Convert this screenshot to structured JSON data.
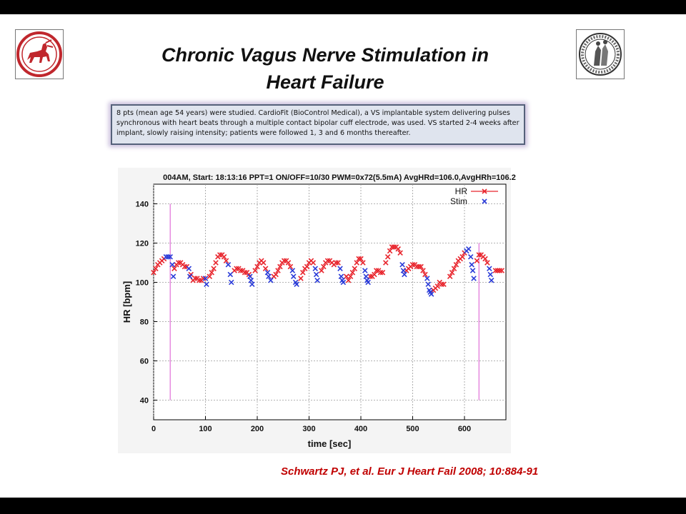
{
  "slide": {
    "title_line1": "Chronic Vagus Nerve Stimulation  in",
    "title_line2": "Heart Failure",
    "info_text": "8 pts (mean age 54 years) were studied. CardioFit (BioControl Medical), a VS implantable system delivering pulses synchronous with heart beats through a multiple contact bipolar cuff electrode, was used. VS started 2-4 weeks after implant, slowly raising intensity; patients were followed 1, 3 and 6 months thereafter.",
    "citation": "Schwartz PJ, et al. Eur J Heart Fail 2008; 10:884-91",
    "logo_left": "centaur-emblem",
    "logo_right": "university-seal"
  },
  "chart_data": {
    "type": "scatter",
    "title": "004AM, Start: 18:13:16 PPT=1 ON/OFF=10/30 PWM=0x72(5.5mA) AvgHRd=106.0,AvgHRh=106.2",
    "xlabel": "time [sec]",
    "ylabel": "HR [bpm]",
    "xlim": [
      0,
      680
    ],
    "ylim": [
      30,
      150
    ],
    "xticks": [
      0,
      100,
      200,
      300,
      400,
      500,
      600
    ],
    "yticks": [
      40,
      60,
      80,
      100,
      120,
      140
    ],
    "grid": true,
    "legend_position": "top-right",
    "colors": {
      "HR": "#e8242c",
      "Stim": "#2a3bd8",
      "markers": "#e070d8"
    },
    "marker_lines": [
      {
        "x": 32,
        "y0": 40,
        "y1": 140
      },
      {
        "x": 628,
        "y0": 40,
        "y1": 120
      }
    ],
    "series": [
      {
        "name": "HR",
        "points": [
          [
            0,
            105
          ],
          [
            4,
            107
          ],
          [
            8,
            109
          ],
          [
            12,
            110
          ],
          [
            16,
            111
          ],
          [
            20,
            112
          ],
          [
            40,
            107
          ],
          [
            44,
            109
          ],
          [
            48,
            110
          ],
          [
            52,
            110
          ],
          [
            56,
            109
          ],
          [
            60,
            108
          ],
          [
            64,
            108
          ],
          [
            72,
            104
          ],
          [
            76,
            101
          ],
          [
            80,
            102
          ],
          [
            84,
            102
          ],
          [
            88,
            101
          ],
          [
            92,
            101
          ],
          [
            96,
            102
          ],
          [
            108,
            103
          ],
          [
            112,
            105
          ],
          [
            116,
            107
          ],
          [
            120,
            110
          ],
          [
            124,
            113
          ],
          [
            128,
            114
          ],
          [
            132,
            114
          ],
          [
            136,
            113
          ],
          [
            140,
            111
          ],
          [
            156,
            106
          ],
          [
            160,
            107
          ],
          [
            164,
            107
          ],
          [
            168,
            106
          ],
          [
            172,
            106
          ],
          [
            176,
            105
          ],
          [
            180,
            105
          ],
          [
            184,
            104
          ],
          [
            196,
            106
          ],
          [
            200,
            108
          ],
          [
            204,
            110
          ],
          [
            208,
            111
          ],
          [
            212,
            110
          ],
          [
            216,
            107
          ],
          [
            232,
            103
          ],
          [
            236,
            104
          ],
          [
            240,
            106
          ],
          [
            244,
            108
          ],
          [
            248,
            110
          ],
          [
            252,
            111
          ],
          [
            256,
            111
          ],
          [
            260,
            110
          ],
          [
            264,
            108
          ],
          [
            284,
            102
          ],
          [
            288,
            105
          ],
          [
            292,
            107
          ],
          [
            296,
            108
          ],
          [
            300,
            110
          ],
          [
            304,
            111
          ],
          [
            308,
            110
          ],
          [
            324,
            106
          ],
          [
            328,
            108
          ],
          [
            332,
            110
          ],
          [
            336,
            111
          ],
          [
            340,
            111
          ],
          [
            344,
            110
          ],
          [
            348,
            109
          ],
          [
            352,
            110
          ],
          [
            356,
            110
          ],
          [
            372,
            103
          ],
          [
            376,
            101
          ],
          [
            380,
            103
          ],
          [
            384,
            105
          ],
          [
            388,
            107
          ],
          [
            392,
            110
          ],
          [
            396,
            112
          ],
          [
            400,
            112
          ],
          [
            404,
            110
          ],
          [
            418,
            103
          ],
          [
            422,
            103
          ],
          [
            426,
            104
          ],
          [
            430,
            106
          ],
          [
            434,
            106
          ],
          [
            438,
            105
          ],
          [
            442,
            105
          ],
          [
            448,
            110
          ],
          [
            452,
            113
          ],
          [
            456,
            116
          ],
          [
            460,
            118
          ],
          [
            464,
            118
          ],
          [
            468,
            118
          ],
          [
            472,
            117
          ],
          [
            476,
            115
          ],
          [
            488,
            106
          ],
          [
            492,
            107
          ],
          [
            496,
            108
          ],
          [
            500,
            109
          ],
          [
            504,
            109
          ],
          [
            508,
            108
          ],
          [
            512,
            108
          ],
          [
            516,
            108
          ],
          [
            520,
            106
          ],
          [
            524,
            104
          ],
          [
            540,
            96
          ],
          [
            544,
            97
          ],
          [
            548,
            98
          ],
          [
            552,
            100
          ],
          [
            556,
            99
          ],
          [
            560,
            99
          ],
          [
            572,
            103
          ],
          [
            576,
            105
          ],
          [
            580,
            107
          ],
          [
            584,
            109
          ],
          [
            588,
            111
          ],
          [
            592,
            112
          ],
          [
            596,
            113
          ],
          [
            600,
            115
          ],
          [
            624,
            111
          ],
          [
            628,
            114
          ],
          [
            632,
            114
          ],
          [
            636,
            113
          ],
          [
            640,
            112
          ],
          [
            644,
            110
          ],
          [
            660,
            106
          ],
          [
            664,
            106
          ],
          [
            668,
            106
          ],
          [
            672,
            106
          ]
        ]
      },
      {
        "name": "Stim",
        "points": [
          [
            24,
            113
          ],
          [
            28,
            113
          ],
          [
            32,
            113
          ],
          [
            36,
            109
          ],
          [
            38,
            103
          ],
          [
            68,
            107
          ],
          [
            70,
            103
          ],
          [
            100,
            102
          ],
          [
            102,
            99
          ],
          [
            144,
            109
          ],
          [
            148,
            104
          ],
          [
            150,
            100
          ],
          [
            186,
            103
          ],
          [
            188,
            101
          ],
          [
            190,
            99
          ],
          [
            220,
            105
          ],
          [
            222,
            103
          ],
          [
            226,
            101
          ],
          [
            268,
            106
          ],
          [
            270,
            103
          ],
          [
            274,
            100
          ],
          [
            276,
            99
          ],
          [
            312,
            107
          ],
          [
            314,
            104
          ],
          [
            316,
            101
          ],
          [
            360,
            107
          ],
          [
            362,
            103
          ],
          [
            364,
            101
          ],
          [
            366,
            100
          ],
          [
            408,
            106
          ],
          [
            410,
            103
          ],
          [
            412,
            101
          ],
          [
            414,
            100
          ],
          [
            480,
            109
          ],
          [
            482,
            106
          ],
          [
            484,
            104
          ],
          [
            528,
            102
          ],
          [
            530,
            99
          ],
          [
            532,
            96
          ],
          [
            534,
            95
          ],
          [
            536,
            94
          ],
          [
            604,
            116
          ],
          [
            608,
            117
          ],
          [
            612,
            113
          ],
          [
            614,
            109
          ],
          [
            616,
            106
          ],
          [
            618,
            102
          ],
          [
            648,
            107
          ],
          [
            650,
            104
          ],
          [
            652,
            101
          ]
        ]
      }
    ]
  }
}
